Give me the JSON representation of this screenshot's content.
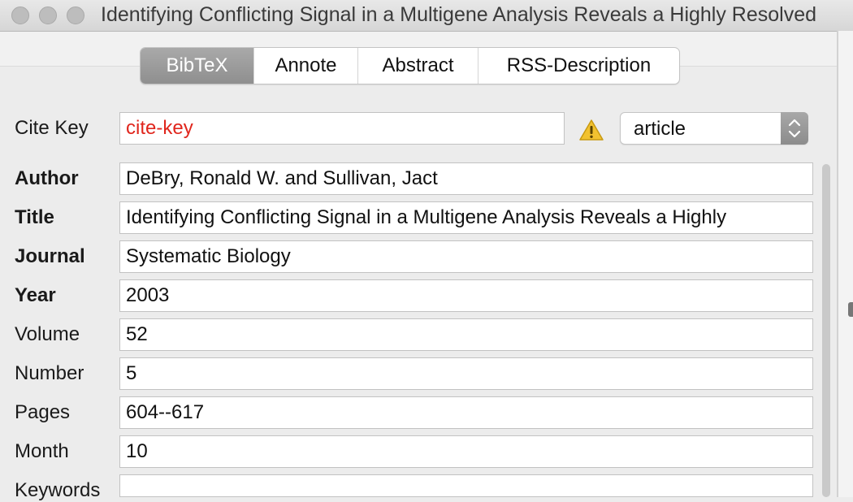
{
  "window": {
    "title": "Identifying Conflicting Signal in a Multigene Analysis Reveals a Highly Resolved"
  },
  "tabs": [
    {
      "label": "BibTeX",
      "active": true
    },
    {
      "label": "Annote",
      "active": false
    },
    {
      "label": "Abstract",
      "active": false
    },
    {
      "label": "RSS-Description",
      "active": false
    }
  ],
  "cite_key": {
    "label": "Cite Key",
    "value": "cite-key",
    "value_color": "#e0261d",
    "warning_icon": "warning-triangle-icon"
  },
  "entry_type": {
    "value": "article",
    "stepper_icon": "up-down-chevron-icon"
  },
  "fields": [
    {
      "label": "Author",
      "required": true,
      "value": "DeBry, Ronald W. and Sullivan, Jact"
    },
    {
      "label": "Title",
      "required": true,
      "value": "Identifying Conflicting Signal in a Multigene Analysis Reveals a Highly"
    },
    {
      "label": "Journal",
      "required": true,
      "value": "Systematic Biology"
    },
    {
      "label": "Year",
      "required": true,
      "value": "2003"
    },
    {
      "label": "Volume",
      "required": false,
      "value": "52"
    },
    {
      "label": "Number",
      "required": false,
      "value": "5"
    },
    {
      "label": "Pages",
      "required": false,
      "value": "604--617"
    },
    {
      "label": "Month",
      "required": false,
      "value": "10"
    },
    {
      "label": "Keywords",
      "required": false,
      "value": ""
    }
  ]
}
